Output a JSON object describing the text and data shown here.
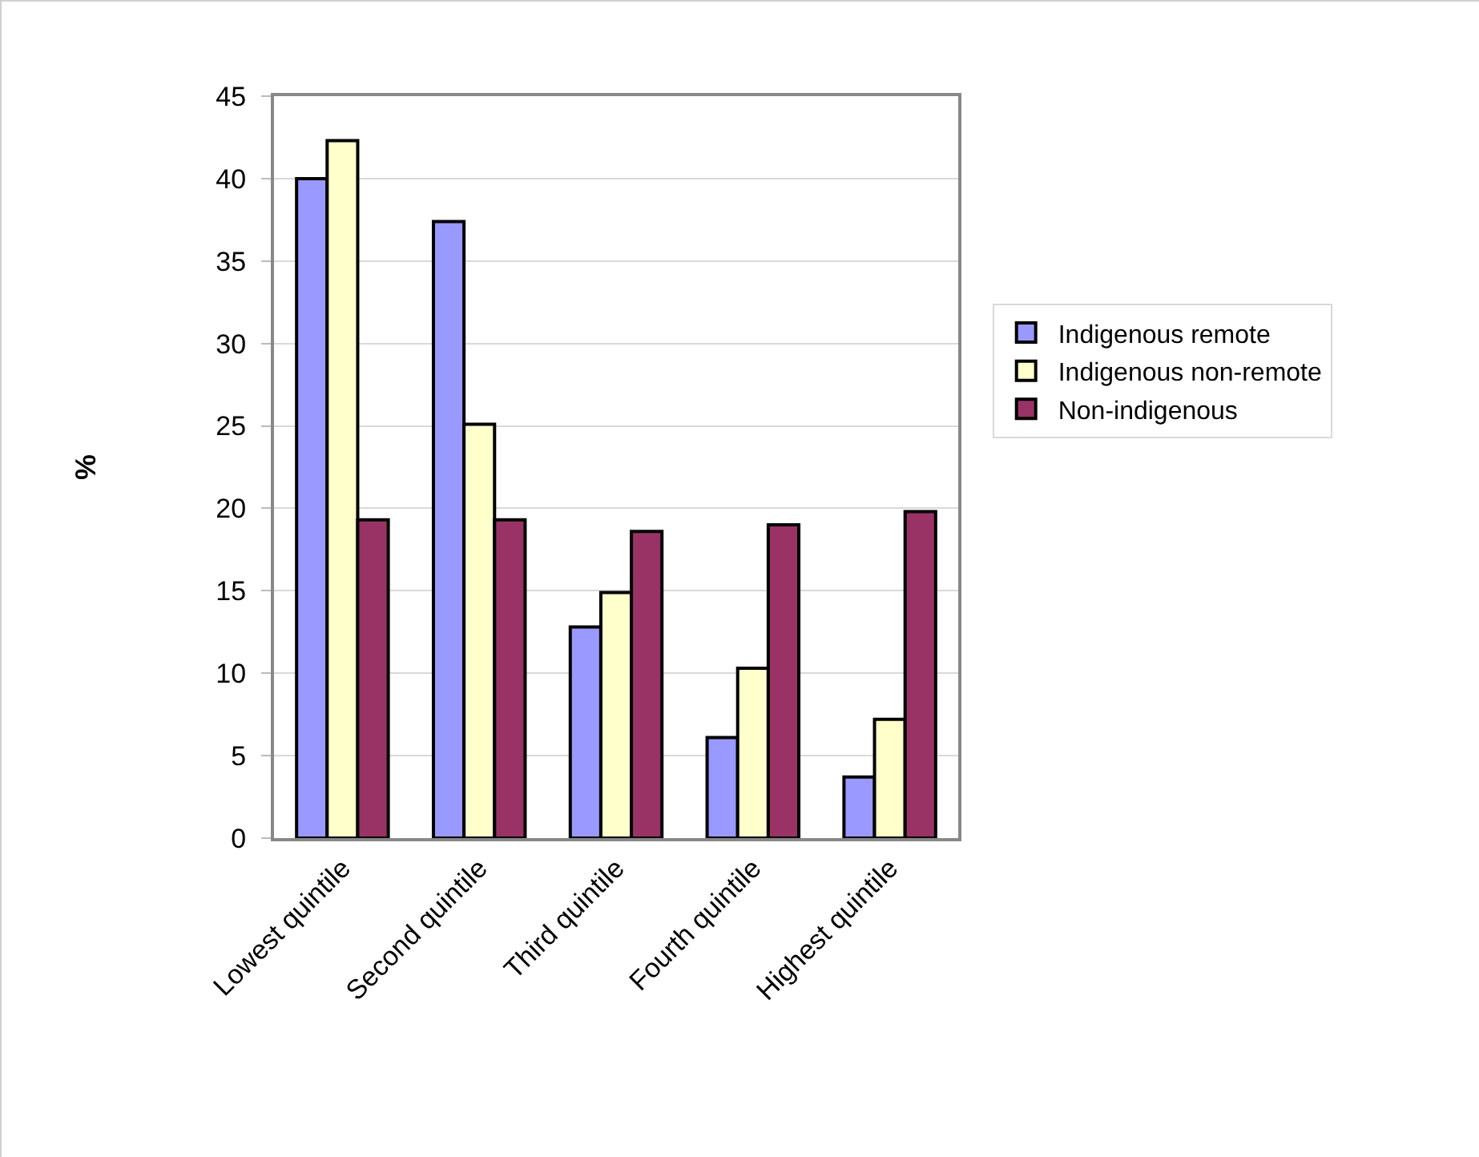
{
  "chart_data": {
    "type": "bar",
    "ylabel": "%",
    "categories": [
      "Lowest quintile",
      "Second quintile",
      "Third quintile",
      "Fourth quintile",
      "Highest quintile"
    ],
    "series": [
      {
        "name": "Indigenous remote",
        "color": "#9999ff",
        "values": [
          40.0,
          37.4,
          12.8,
          6.1,
          3.7
        ]
      },
      {
        "name": "Indigenous non-remote",
        "color": "#ffffcc",
        "values": [
          42.3,
          25.1,
          14.9,
          10.3,
          7.2
        ]
      },
      {
        "name": "Non-indigenous",
        "color": "#993366",
        "values": [
          19.3,
          19.3,
          18.6,
          19.0,
          19.8
        ]
      }
    ],
    "ylim": [
      0,
      45
    ],
    "yticks": [
      0,
      5,
      10,
      15,
      20,
      25,
      30,
      35,
      40,
      45
    ],
    "grid": "y",
    "legend": "right"
  }
}
